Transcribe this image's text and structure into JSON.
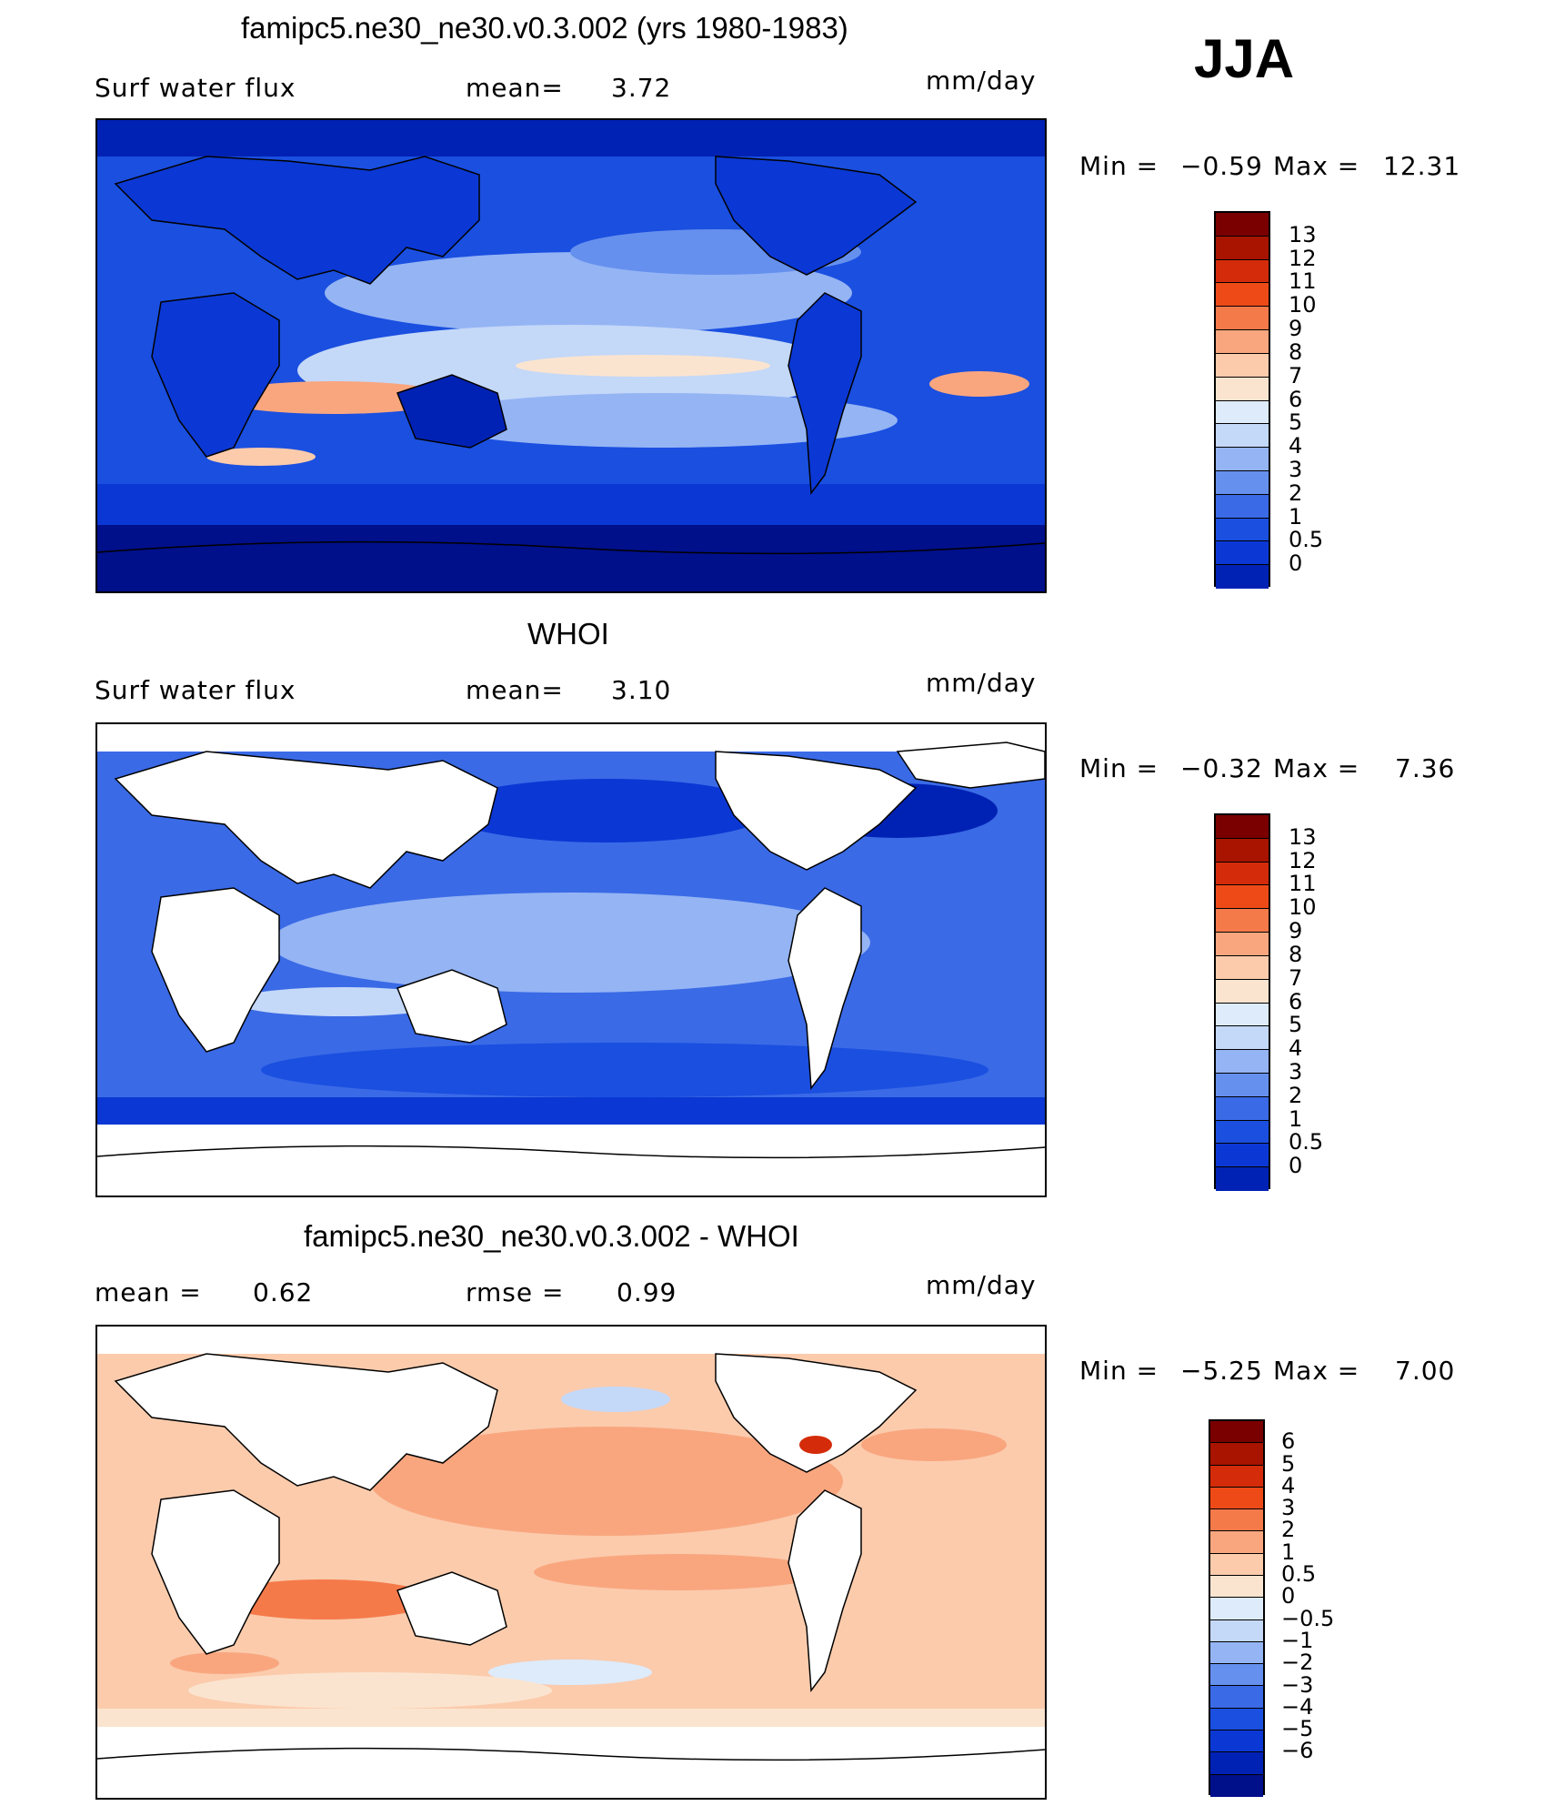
{
  "season": "JJA",
  "panels": [
    {
      "title": "famipc5.ne30_ne30.v0.3.002 (yrs 1980-1983)",
      "left_label": "Surf water flux",
      "mid_label": "mean=",
      "mid_value": "3.72",
      "units": "mm/day",
      "min_label": "Min =",
      "min_value": "−0.59",
      "max_label": "Max =",
      "max_value": "12.31"
    },
    {
      "title": "WHOI",
      "left_label": "Surf water flux",
      "mid_label": "mean=",
      "mid_value": "3.10",
      "units": "mm/day",
      "min_label": "Min =",
      "min_value": "−0.32",
      "max_label": "Max =",
      "max_value": "7.36"
    },
    {
      "title": "famipc5.ne30_ne30.v0.3.002 - WHOI",
      "left_label": "mean =",
      "left_value": "0.62",
      "mid_label": "rmse =",
      "mid_value": "0.99",
      "units": "mm/day",
      "min_label": "Min =",
      "min_value": "−5.25",
      "max_label": "Max =",
      "max_value": "7.00"
    }
  ],
  "chart_data": [
    {
      "type": "heatmap",
      "title": "famipc5.ne30_ne30.v0.3.002 (yrs 1980-1983)",
      "variable": "Surf water flux",
      "units": "mm/day",
      "mean": 3.72,
      "min": -0.59,
      "max": 12.31,
      "colorbar_levels": [
        "0",
        "0.5",
        "1",
        "2",
        "3",
        "4",
        "5",
        "6",
        "7",
        "8",
        "9",
        "10",
        "11",
        "12",
        "13"
      ],
      "colorbar_colors": [
        "#000f8a",
        "#0022b4",
        "#0b38d4",
        "#1a4fe0",
        "#3a6ae6",
        "#6690ee",
        "#94b4f4",
        "#c4d8f8",
        "#ddebfb",
        "#fbe4cf",
        "#fbcbac",
        "#f9a67f",
        "#f57a4a",
        "#ee4a18",
        "#d42b0a",
        "#a81400",
        "#7a0000"
      ],
      "map": "global lon 0-360 (Greenwich-centered), lat -90 to 90",
      "notes": "Land and ocean both filled; highest values in tropical Pacific/Indian Ocean bands."
    },
    {
      "type": "heatmap",
      "title": "WHOI",
      "variable": "Surf water flux",
      "units": "mm/day",
      "mean": 3.1,
      "min": -0.32,
      "max": 7.36,
      "colorbar_levels": [
        "0",
        "0.5",
        "1",
        "2",
        "3",
        "4",
        "5",
        "6",
        "7",
        "8",
        "9",
        "10",
        "11",
        "12",
        "13"
      ],
      "colorbar_colors": [
        "#000f8a",
        "#0022b4",
        "#0b38d4",
        "#1a4fe0",
        "#3a6ae6",
        "#6690ee",
        "#94b4f4",
        "#c4d8f8",
        "#ddebfb",
        "#fbe4cf",
        "#fbcbac",
        "#f9a67f",
        "#f57a4a",
        "#ee4a18",
        "#d42b0a",
        "#a81400",
        "#7a0000"
      ],
      "map": "global, ocean only (land white)",
      "notes": "Ocean-only observational field; no data poleward of ~65S and over land."
    },
    {
      "type": "heatmap",
      "title": "famipc5.ne30_ne30.v0.3.002 - WHOI",
      "units": "mm/day",
      "mean": 0.62,
      "rmse": 0.99,
      "min": -5.25,
      "max": 7.0,
      "colorbar_levels": [
        "-6",
        "-5",
        "-4",
        "-3",
        "-2",
        "-1",
        "-0.5",
        "0",
        "0.5",
        "1",
        "2",
        "3",
        "4",
        "5",
        "6"
      ],
      "colorbar_colors": [
        "#000f8a",
        "#0022b4",
        "#0b38d4",
        "#1a4fe0",
        "#3a6ae6",
        "#6690ee",
        "#94b4f4",
        "#c4d8f8",
        "#ddebfb",
        "#fbe4cf",
        "#fbcbac",
        "#f9a67f",
        "#f57a4a",
        "#ee4a18",
        "#d42b0a",
        "#a81400",
        "#7a0000"
      ],
      "map": "global, ocean only (land white)",
      "notes": "Difference field mostly positive (orange) over oceans; small negative regions."
    }
  ],
  "colorbar_ticks": {
    "abs": [
      "13",
      "12",
      "11",
      "10",
      "9",
      "8",
      "7",
      "6",
      "5",
      "4",
      "3",
      "2",
      "1",
      "0.5",
      "0"
    ],
    "diff": [
      "6",
      "5",
      "4",
      "3",
      "2",
      "1",
      "0.5",
      "0",
      "−0.5",
      "−1",
      "−2",
      "−3",
      "−4",
      "−5",
      "−6"
    ]
  },
  "colors": {
    "abs_bar": [
      "#7a0000",
      "#a81400",
      "#d42b0a",
      "#ee4a18",
      "#f57a4a",
      "#f9a67f",
      "#fbcbac",
      "#fbe4cf",
      "#ddebfb",
      "#c4d8f8",
      "#94b4f4",
      "#6690ee",
      "#3a6ae6",
      "#1a4fe0",
      "#0b38d4",
      "#0022b4"
    ],
    "diff_bar": [
      "#7a0000",
      "#a81400",
      "#d42b0a",
      "#ee4a18",
      "#f57a4a",
      "#f9a67f",
      "#fbcbac",
      "#fbe4cf",
      "#ddebfb",
      "#c4d8f8",
      "#94b4f4",
      "#6690ee",
      "#3a6ae6",
      "#1a4fe0",
      "#0b38d4",
      "#0022b4",
      "#000f8a"
    ]
  }
}
